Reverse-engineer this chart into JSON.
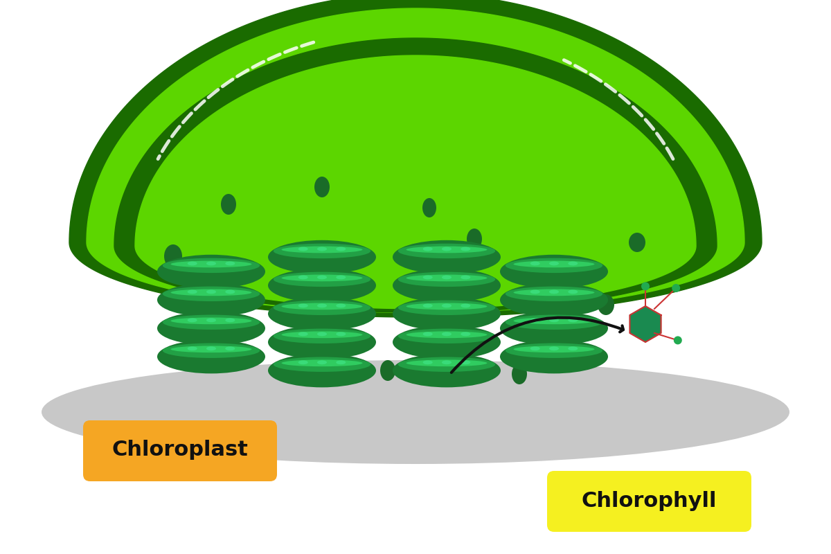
{
  "bg_color": "#ffffff",
  "shadow_color": "#c8c8c8",
  "color_outer_dark": "#1a6b00",
  "color_outer_mid": "#3cb800",
  "color_outer_bright": "#5cd600",
  "color_inner_dark": "#1a6b00",
  "color_stroma": "#5cd600",
  "color_stroma_mid": "#6ee628",
  "color_grana_dark": "#1a7a30",
  "color_grana_mid": "#22a045",
  "color_grana_light": "#30cc60",
  "color_grana_highlight": "#3de080",
  "color_dot": "#1a6b28",
  "color_arrow": "#111111",
  "color_label_chloroplast_bg": "#f5a623",
  "color_label_chlorophyll_bg": "#f5f020",
  "color_label_text": "#111111",
  "color_mol_hex": "#1a8a50",
  "color_mol_line": "#cc3333",
  "color_mol_dot": "#22aa50",
  "color_highlight": "#b8ff80"
}
